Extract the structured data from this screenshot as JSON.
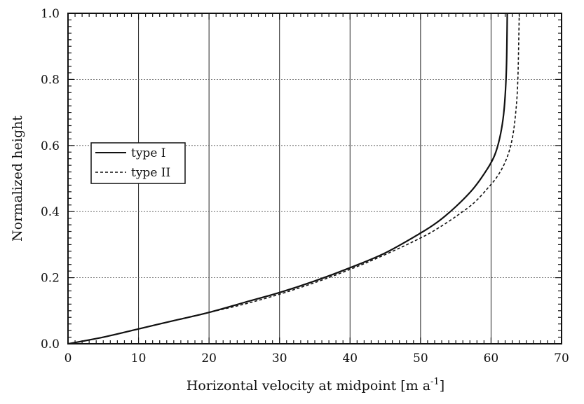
{
  "chart_data": {
    "type": "line",
    "title": "",
    "xlabel": "Horizontal velocity at midpoint   [m a",
    "xlabel_superscript": "-1",
    "xlabel_close": "]",
    "ylabel": "Normalized height",
    "xlim": [
      0,
      70
    ],
    "ylim": [
      0,
      1.0
    ],
    "x_ticks": [
      0,
      10,
      20,
      30,
      40,
      50,
      60,
      70
    ],
    "y_ticks": [
      0.0,
      0.2,
      0.4,
      0.6,
      0.8,
      1.0
    ],
    "x_tick_labels": [
      "0",
      "10",
      "20",
      "30",
      "40",
      "50",
      "60",
      "70"
    ],
    "y_tick_labels": [
      "0.0",
      "0.2",
      "0.4",
      "0.6",
      "0.8",
      "1.0"
    ],
    "grid": true,
    "legend_position": "left-middle",
    "series": [
      {
        "name": "type I",
        "style": "solid",
        "points": [
          [
            0,
            0.0
          ],
          [
            5,
            0.02
          ],
          [
            10,
            0.045
          ],
          [
            15,
            0.07
          ],
          [
            20,
            0.095
          ],
          [
            25,
            0.125
          ],
          [
            30,
            0.155
          ],
          [
            35,
            0.19
          ],
          [
            40,
            0.23
          ],
          [
            45,
            0.275
          ],
          [
            50,
            0.335
          ],
          [
            52.5,
            0.37
          ],
          [
            55,
            0.415
          ],
          [
            57.5,
            0.47
          ],
          [
            59.5,
            0.53
          ],
          [
            60.5,
            0.57
          ],
          [
            61.2,
            0.62
          ],
          [
            61.7,
            0.68
          ],
          [
            62.0,
            0.75
          ],
          [
            62.2,
            0.85
          ],
          [
            62.3,
            1.0
          ]
        ]
      },
      {
        "name": "type II",
        "style": "dashed",
        "points": [
          [
            0,
            0.0
          ],
          [
            5,
            0.02
          ],
          [
            10,
            0.045
          ],
          [
            15,
            0.07
          ],
          [
            20,
            0.095
          ],
          [
            25,
            0.12
          ],
          [
            30,
            0.15
          ],
          [
            35,
            0.185
          ],
          [
            40,
            0.225
          ],
          [
            45,
            0.27
          ],
          [
            50,
            0.32
          ],
          [
            52.5,
            0.35
          ],
          [
            55,
            0.385
          ],
          [
            57.5,
            0.425
          ],
          [
            59.5,
            0.47
          ],
          [
            61.0,
            0.51
          ],
          [
            62.2,
            0.56
          ],
          [
            63.0,
            0.62
          ],
          [
            63.5,
            0.7
          ],
          [
            63.8,
            0.8
          ],
          [
            64.0,
            1.0
          ]
        ]
      }
    ]
  }
}
